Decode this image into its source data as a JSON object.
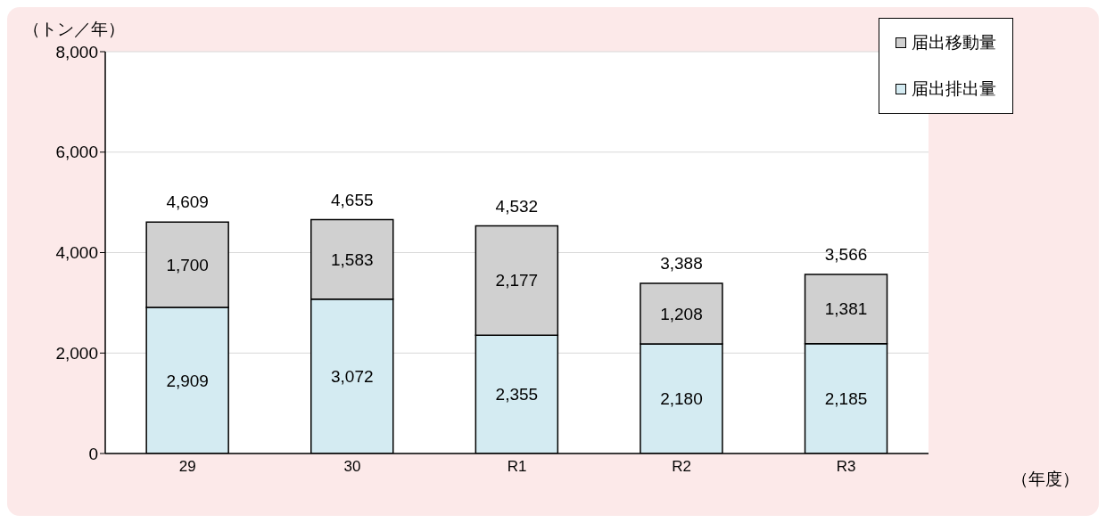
{
  "chart_data": {
    "type": "bar",
    "stacked": true,
    "ylabel": "（トン／年）",
    "xlabel": "（年度）",
    "categories": [
      "29",
      "30",
      "R1",
      "R2",
      "R3"
    ],
    "series": [
      {
        "name": "届出排出量",
        "color": "#d4ebf2",
        "values": [
          2909,
          3072,
          2355,
          2180,
          2185
        ],
        "value_labels": [
          "2,909",
          "3,072",
          "2,355",
          "2,180",
          "2,185"
        ]
      },
      {
        "name": "届出移動量",
        "color": "#d0d0d0",
        "values": [
          1700,
          1583,
          2177,
          1208,
          1381
        ],
        "value_labels": [
          "1,700",
          "1,583",
          "2,177",
          "1,208",
          "1,381"
        ]
      }
    ],
    "totals": [
      "4,609",
      "4,655",
      "4,532",
      "3,388",
      "3,566"
    ],
    "ylim": [
      0,
      8000
    ],
    "yticks": [
      {
        "value": 0,
        "label": "0"
      },
      {
        "value": 2000,
        "label": "2,000"
      },
      {
        "value": 4000,
        "label": "4,000"
      },
      {
        "value": 6000,
        "label": "6,000"
      },
      {
        "value": 8000,
        "label": "8,000"
      }
    ],
    "grid": "y",
    "legend": "top right"
  }
}
